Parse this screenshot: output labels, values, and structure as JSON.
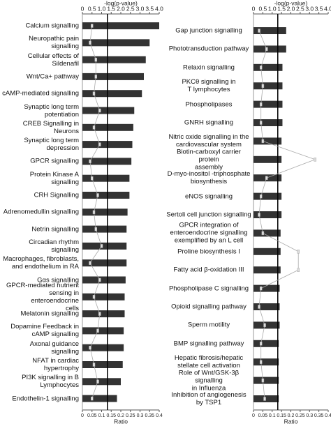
{
  "chart_data": [
    {
      "type": "bar",
      "xlabel": "-log(p-value)",
      "x2label": "Ratio",
      "categories": [
        "Calcium signalling",
        "Neuropathic pain signalling",
        "Cellular effects of Sildenafil",
        "Wnt/Ca+ pathway",
        "cAMP-mediated signalling",
        "Synaptic long term\npotentiation",
        "CREB Signalling in Neurons",
        "Synaptic long term\ndepression",
        "GPCR signalling",
        "Protein Kinase A signalling",
        "CRH Signalling",
        "Adrenomedullin signalling",
        "Netrin signalling",
        "Circadian rhythm signalling",
        "Macrophages, fibroblasts,\nand endothelium in RA",
        "Gαs signalling",
        "GPCR-mediated nutrient\nsensing in enteroendocrine\ncells",
        "Melatonin signalling",
        "Dopamine Feedback in\ncAMP signalling",
        "Axonal guidance signalling",
        "NFAT in cardiac hypertrophy",
        "PI3K signalling in B\nLymphocytes",
        "Endothelin-1 signalling"
      ],
      "series": [
        {
          "color": "#333333",
          "values": [
            4.0,
            3.5,
            3.3,
            3.2,
            3.1,
            2.7,
            2.65,
            2.6,
            2.55,
            2.45,
            2.45,
            2.35,
            2.3,
            2.3,
            2.3,
            2.25,
            2.2,
            2.2,
            2.15,
            2.15,
            2.1,
            2.0,
            1.8
          ]
        },
        {
          "color": "#aaaaaa",
          "axis": "x2",
          "values": [
            0.05,
            0.04,
            0.07,
            0.07,
            0.06,
            0.09,
            0.06,
            0.09,
            0.04,
            0.05,
            0.08,
            0.06,
            0.07,
            0.1,
            0.04,
            0.09,
            0.06,
            0.09,
            0.08,
            0.04,
            0.06,
            0.08,
            0.05
          ]
        }
      ],
      "threshold": 1.3,
      "xlim": [
        0,
        4
      ],
      "xticks": [
        0,
        0.5,
        {
          "value": 1,
          "label": "1.0"
        },
        1.5,
        {
          "value": 2,
          "label": "2.0"
        },
        2.5,
        {
          "value": 3,
          "label": "3.0"
        },
        3.5,
        {
          "value": 4,
          "label": "4.0"
        }
      ],
      "x2lim": [
        0,
        0.4
      ],
      "x2ticks": [
        0,
        0.05,
        0.1,
        0.15,
        0.2,
        0.25,
        0.3,
        0.35,
        0.4
      ]
    },
    {
      "type": "bar",
      "xlabel": "-log(p-value)",
      "x2label": "Ratio",
      "categories": [
        "Gap junction signalling",
        "Phototransduction  pathway",
        "Relaxin signalling",
        "PKCθ signalling in\nT lymphocytes",
        "Phospholipases",
        "GNRH signalling",
        "Nitric oxide signalling in the\ncardiovascular system",
        "Biotin-carboxyl carrier protein\nassembly",
        "D-myo-inositol -triphosphate\nbiosynthesis",
        "eNOS signalling",
        "Sertoli cell junction signalling",
        "GPCR integration of\nenteroendocrine signalling\nexemplified by an L cell",
        "Proline biosynthesis I",
        "Fatty acid β-oxidation III",
        "Phospholipase C signalling",
        "Opioid signalling pathway",
        "Sperm  motility",
        "BMP signalling pathway",
        "Hepatic fibrosis/hepatic\nstellate cell activation",
        "Role of Wnt/GSK-3β signalling\nin Influenza",
        "Inhibition of angiogenesis\nby TSP1"
      ],
      "series": [
        {
          "color": "#333333",
          "values": [
            1.75,
            1.75,
            1.55,
            1.55,
            1.55,
            1.55,
            1.5,
            1.5,
            1.5,
            1.5,
            1.5,
            1.45,
            1.45,
            1.45,
            1.4,
            1.4,
            1.4,
            1.35,
            1.35,
            1.35,
            1.35
          ]
        },
        {
          "color": "#aaaaaa",
          "axis": "x2",
          "values": [
            0.03,
            0.07,
            0.04,
            0.05,
            0.04,
            0.04,
            0.05,
            0.33,
            0.07,
            0.04,
            0.03,
            0.05,
            0.24,
            0.24,
            0.04,
            0.03,
            0.06,
            0.04,
            0.04,
            0.05,
            0.06
          ]
        }
      ],
      "threshold": 1.3,
      "xlim": [
        0,
        4
      ],
      "xticks": [
        0,
        0.5,
        {
          "value": 1,
          "label": "1.0"
        },
        1.5,
        {
          "value": 2,
          "label": "2.0"
        },
        2.5,
        {
          "value": 3,
          "label": "3.0"
        },
        3.5,
        {
          "value": 4,
          "label": "4.0"
        }
      ],
      "x2lim": [
        0,
        0.4
      ],
      "x2ticks": [
        0,
        0.05,
        0.1,
        0.15,
        0.2,
        0.25,
        0.3,
        0.35,
        0.4
      ]
    }
  ]
}
